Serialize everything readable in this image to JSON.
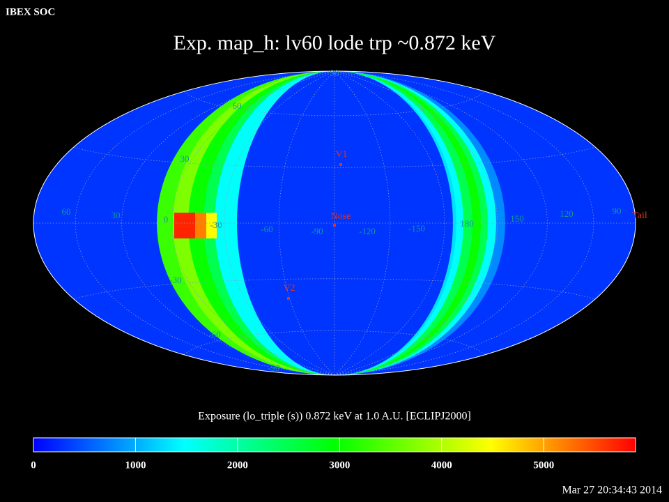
{
  "header": "IBEX SOC",
  "title": "Exp.   map_h: lv60 lode trp ~0.872 keV",
  "grid_labels": [
    "90",
    "60",
    "30",
    "0",
    "-30",
    "-60",
    "-90",
    "-120",
    "-150",
    "180",
    "150",
    "120",
    "90",
    "60",
    "30",
    "-30",
    "-60",
    "-90"
  ],
  "markers": [
    "V1",
    "Nose",
    "V2",
    "Tail"
  ],
  "map": {
    "base": 300,
    "left_bands": [
      3300,
      3700,
      3000,
      2500,
      1500
    ],
    "right_bands": [
      800,
      1500,
      2500,
      3000,
      2500,
      1500,
      1300
    ],
    "cells": [
      5700,
      5200,
      4500
    ]
  },
  "colorbar": {
    "title": "Exposure (lo_triple (s))  0.872 keV at 1.0 A.U. [ECLIPJ2000]",
    "clim": [
      0,
      5900
    ],
    "ticks": [
      0,
      1000,
      2000,
      3000,
      4000,
      5000
    ]
  },
  "timestamp": "Mar 27 20:34:43 2014"
}
